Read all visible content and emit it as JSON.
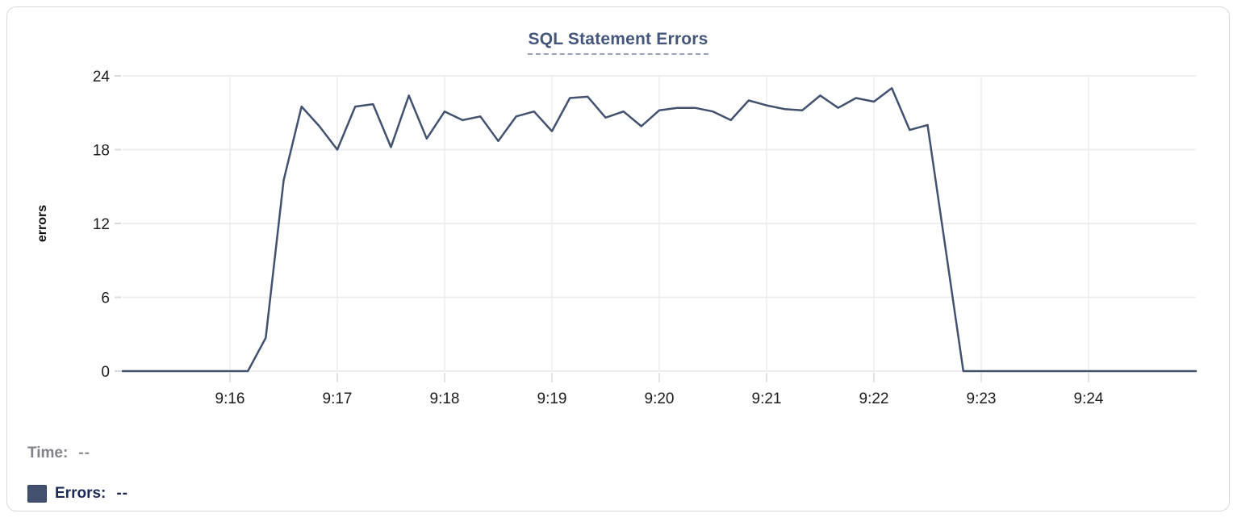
{
  "card": {
    "title": "SQL Statement Errors"
  },
  "readout": {
    "time_label": "Time:",
    "time_value": "--",
    "errors_label": "Errors:",
    "errors_value": "--"
  },
  "chart_data": {
    "type": "line",
    "title": "SQL Statement Errors",
    "xlabel": "",
    "ylabel": "errors",
    "grid": true,
    "legend_position": "bottom-left",
    "line_color": "#42526e",
    "ylim": [
      0,
      24
    ],
    "y_ticks": [
      0,
      6,
      12,
      18,
      24
    ],
    "xlim": [
      "9:15:00",
      "9:25:00"
    ],
    "x_ticks": [
      "9:16",
      "9:17",
      "9:18",
      "9:19",
      "9:20",
      "9:21",
      "9:22",
      "9:23",
      "9:24"
    ],
    "series": [
      {
        "name": "Errors",
        "x": [
          "9:15:00",
          "9:15:10",
          "9:15:20",
          "9:15:30",
          "9:15:40",
          "9:15:50",
          "9:16:00",
          "9:16:10",
          "9:16:20",
          "9:16:30",
          "9:16:40",
          "9:16:50",
          "9:17:00",
          "9:17:10",
          "9:17:20",
          "9:17:30",
          "9:17:40",
          "9:17:50",
          "9:18:00",
          "9:18:10",
          "9:18:20",
          "9:18:30",
          "9:18:40",
          "9:18:50",
          "9:19:00",
          "9:19:10",
          "9:19:20",
          "9:19:30",
          "9:19:40",
          "9:19:50",
          "9:20:00",
          "9:20:10",
          "9:20:20",
          "9:20:30",
          "9:20:40",
          "9:20:50",
          "9:21:00",
          "9:21:10",
          "9:21:20",
          "9:21:30",
          "9:21:40",
          "9:21:50",
          "9:22:00",
          "9:22:10",
          "9:22:20",
          "9:22:30",
          "9:22:40",
          "9:22:50",
          "9:23:00",
          "9:23:10",
          "9:23:20",
          "9:23:30",
          "9:23:40",
          "9:23:50",
          "9:24:00",
          "9:24:10",
          "9:24:20",
          "9:24:30",
          "9:24:40",
          "9:24:50",
          "9:25:00"
        ],
        "values": [
          0,
          0,
          0,
          0,
          0,
          0,
          0,
          0,
          2.7,
          15.5,
          21.5,
          19.9,
          18,
          21.5,
          21.7,
          18.2,
          22.4,
          18.9,
          21.1,
          20.4,
          20.7,
          18.7,
          20.7,
          21.1,
          19.5,
          22.2,
          22.3,
          20.6,
          21.1,
          19.9,
          21.2,
          21.4,
          21.4,
          21.1,
          20.4,
          22,
          21.6,
          21.3,
          21.2,
          22.4,
          21.4,
          22.2,
          21.9,
          23,
          19.6,
          20,
          10,
          0,
          0,
          0,
          0,
          0,
          0,
          0,
          0,
          0,
          0,
          0,
          0,
          0,
          0
        ]
      }
    ]
  }
}
